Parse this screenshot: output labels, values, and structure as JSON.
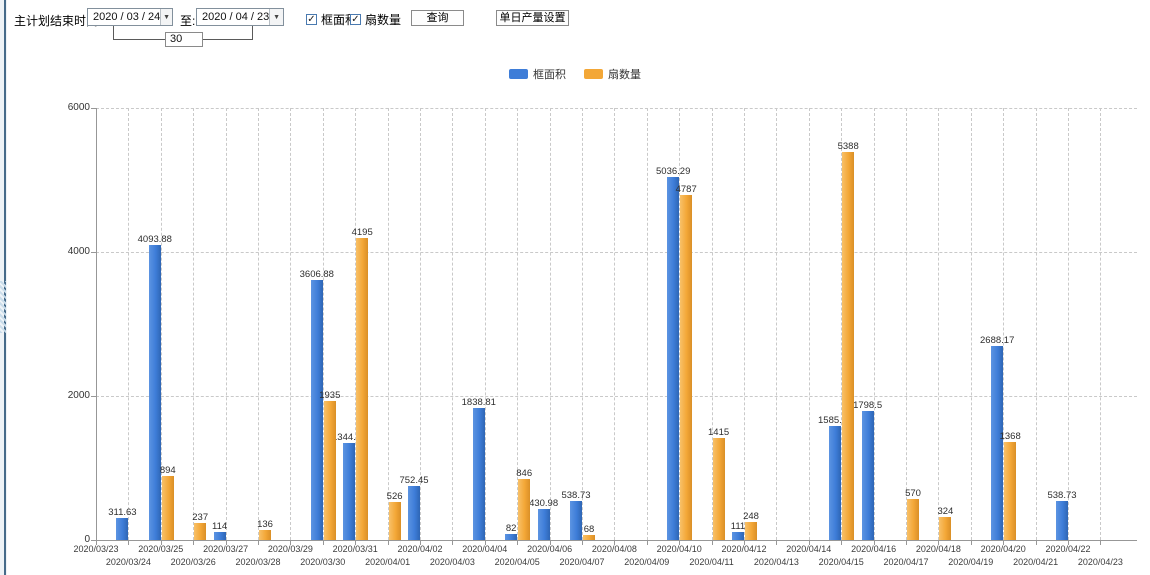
{
  "toolbar": {
    "label_plan_end": "主计划结束时间:",
    "date_start": "2020 / 03 / 24",
    "label_to": "至:",
    "date_end": "2020 / 04 / 23",
    "interval_value": "30",
    "checkbox_frame_area": {
      "label": "框面积",
      "checked": true
    },
    "checkbox_fan_count": {
      "label": "扇数量",
      "checked": true
    },
    "check_glyph": "✓",
    "arrow_glyph": "▼",
    "query_button": "查询",
    "daily_output_button": "单日产量设置"
  },
  "legend": {
    "items": [
      {
        "label": "框面积",
        "color": "#3E7DD8"
      },
      {
        "label": "扇数量",
        "color": "#F3A737"
      }
    ]
  },
  "chart_data": {
    "type": "bar",
    "title": "",
    "xlabel": "",
    "ylabel": "",
    "ylim": [
      0,
      6000
    ],
    "yticks": [
      0,
      2000,
      4000,
      6000
    ],
    "grid": true,
    "legend_position": "top",
    "categories": [
      "2020/03/23",
      "2020/03/24",
      "2020/03/25",
      "2020/03/26",
      "2020/03/27",
      "2020/03/28",
      "2020/03/29",
      "2020/03/30",
      "2020/03/31",
      "2020/04/01",
      "2020/04/02",
      "2020/04/03",
      "2020/04/04",
      "2020/04/05",
      "2020/04/06",
      "2020/04/07",
      "2020/04/08",
      "2020/04/09",
      "2020/04/10",
      "2020/04/11",
      "2020/04/12",
      "2020/04/13",
      "2020/04/14",
      "2020/04/15",
      "2020/04/16",
      "2020/04/17",
      "2020/04/18",
      "2020/04/19",
      "2020/04/20",
      "2020/04/21",
      "2020/04/22",
      "2020/04/23"
    ],
    "series": [
      {
        "name": "框面积",
        "color": "#3E7DD8",
        "values": [
          null,
          311.63,
          4093.88,
          null,
          114,
          null,
          null,
          3606.88,
          1344.95,
          null,
          752.45,
          null,
          1838.81,
          82,
          430.98,
          538.73,
          null,
          null,
          5036.29,
          null,
          111,
          null,
          null,
          1585.96,
          1798.5,
          null,
          null,
          null,
          2688.17,
          null,
          538.73,
          null
        ]
      },
      {
        "name": "扇数量",
        "color": "#F3A737",
        "values": [
          null,
          null,
          894,
          237,
          null,
          136,
          null,
          1935,
          4195,
          526,
          null,
          null,
          null,
          846,
          null,
          68,
          null,
          null,
          4787,
          1415,
          248,
          null,
          null,
          5388,
          null,
          570,
          324,
          null,
          1368,
          null,
          null,
          null
        ]
      }
    ]
  }
}
